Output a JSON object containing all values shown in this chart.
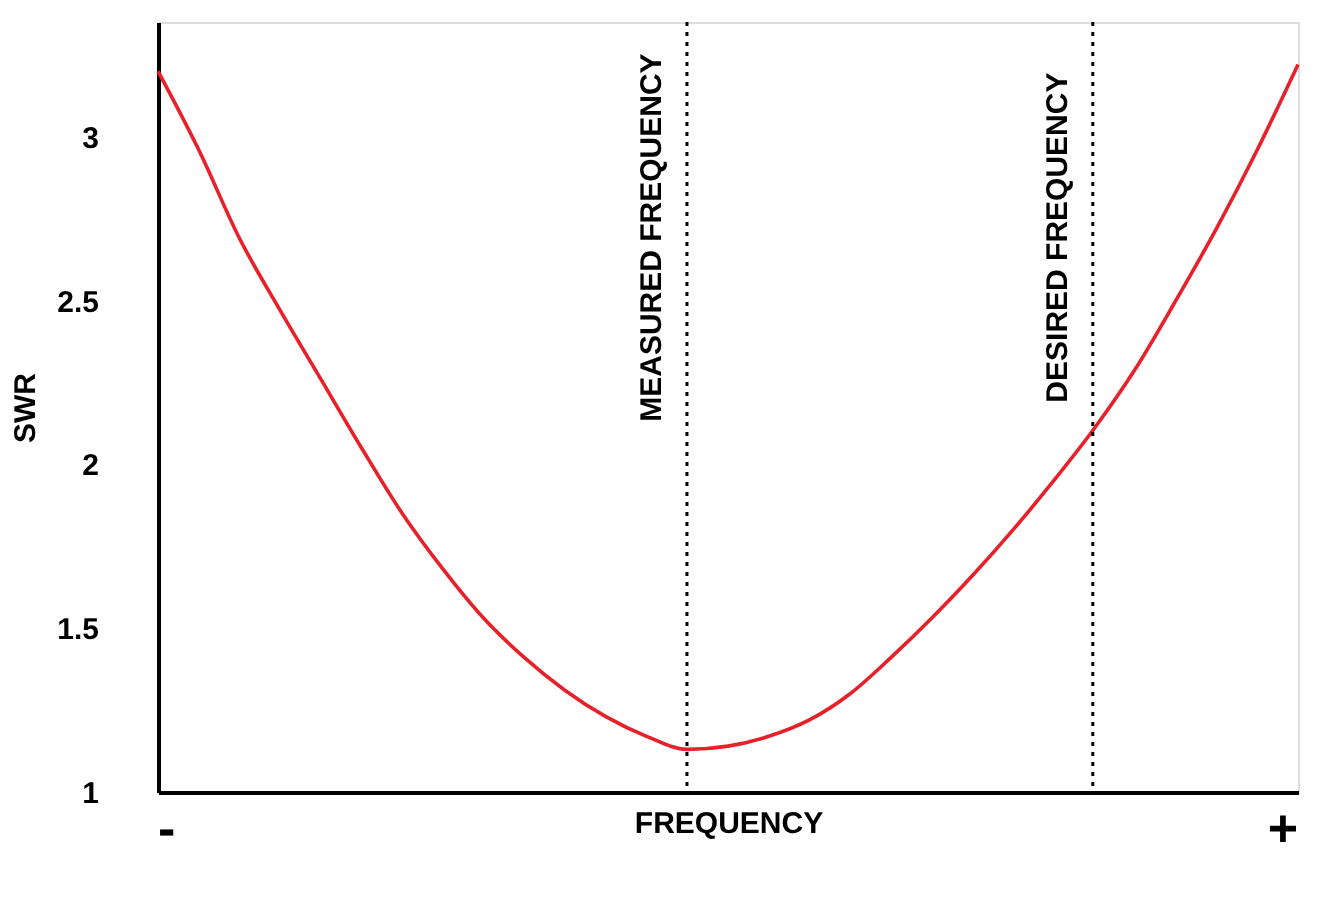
{
  "chart_data": {
    "type": "line",
    "xlabel": "FREQUENCY",
    "ylabel": "SWR",
    "categories": [
      null,
      null,
      null,
      null,
      null,
      null,
      null,
      null,
      null,
      null,
      null,
      null,
      null,
      null,
      null,
      null,
      null,
      null,
      null,
      null,
      null,
      null,
      null,
      null,
      null,
      null,
      null,
      null,
      null
    ],
    "series": [
      {
        "color": "#e8202a",
        "values": [
          3.2,
          2.96,
          2.69,
          2.47,
          2.26,
          2.05,
          1.85,
          1.68,
          1.53,
          1.41,
          1.31,
          1.23,
          1.17,
          1.13,
          1.14,
          1.17,
          1.22,
          1.3,
          1.41,
          1.53,
          1.66,
          1.8,
          1.95,
          2.11,
          2.29,
          2.5,
          2.72,
          2.96,
          3.22
        ]
      }
    ],
    "ylim": [
      1,
      3.35
    ],
    "yticks": [
      1,
      1.5,
      2,
      2.5,
      3
    ],
    "annotations": [
      "MEASURED FREQUENCY",
      "DESIRED FREQUENCY",
      "-",
      "+"
    ],
    "grid": false,
    "marker": "none",
    "line_style": "solid"
  }
}
